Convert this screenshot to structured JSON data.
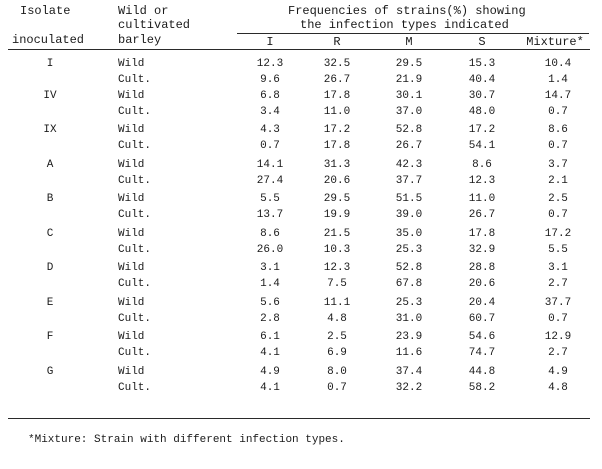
{
  "table": {
    "header": {
      "col1_line1": "Isolate",
      "col1_line2": "inoculated",
      "col2_line1": "Wild or",
      "col2_line2": "cultivated",
      "col2_line3": "barley",
      "group_line1": "Frequencies of strains(%) showing",
      "group_line2": "the infection types indicated",
      "types": [
        "I",
        "R",
        "M",
        "S",
        "Mixture*"
      ]
    },
    "groups": [
      {
        "isolate": "I",
        "rows": [
          {
            "barley": "Wild",
            "values": [
              "12.3",
              "32.5",
              "29.5",
              "15.3",
              "10.4"
            ]
          },
          {
            "barley": "Cult.",
            "values": [
              "9.6",
              "26.7",
              "21.9",
              "40.4",
              "1.4"
            ]
          }
        ]
      },
      {
        "isolate": "IV",
        "rows": [
          {
            "barley": "Wild",
            "values": [
              "6.8",
              "17.8",
              "30.1",
              "30.7",
              "14.7"
            ]
          },
          {
            "barley": "Cult.",
            "values": [
              "3.4",
              "11.0",
              "37.0",
              "48.0",
              "0.7"
            ]
          }
        ]
      },
      {
        "isolate": "IX",
        "rows": [
          {
            "barley": "Wild",
            "values": [
              "4.3",
              "17.2",
              "52.8",
              "17.2",
              "8.6"
            ]
          },
          {
            "barley": "Cult.",
            "values": [
              "0.7",
              "17.8",
              "26.7",
              "54.1",
              "0.7"
            ]
          }
        ]
      },
      {
        "isolate": "A",
        "rows": [
          {
            "barley": "Wild",
            "values": [
              "14.1",
              "31.3",
              "42.3",
              "8.6",
              "3.7"
            ]
          },
          {
            "barley": "Cult.",
            "values": [
              "27.4",
              "20.6",
              "37.7",
              "12.3",
              "2.1"
            ]
          }
        ]
      },
      {
        "isolate": "B",
        "rows": [
          {
            "barley": "Wild",
            "values": [
              "5.5",
              "29.5",
              "51.5",
              "11.0",
              "2.5"
            ]
          },
          {
            "barley": "Cult.",
            "values": [
              "13.7",
              "19.9",
              "39.0",
              "26.7",
              "0.7"
            ]
          }
        ]
      },
      {
        "isolate": "C",
        "rows": [
          {
            "barley": "Wild",
            "values": [
              "8.6",
              "21.5",
              "35.0",
              "17.8",
              "17.2"
            ]
          },
          {
            "barley": "Cult.",
            "values": [
              "26.0",
              "10.3",
              "25.3",
              "32.9",
              "5.5"
            ]
          }
        ]
      },
      {
        "isolate": "D",
        "rows": [
          {
            "barley": "Wild",
            "values": [
              "3.1",
              "12.3",
              "52.8",
              "28.8",
              "3.1"
            ]
          },
          {
            "barley": "Cult.",
            "values": [
              "1.4",
              "7.5",
              "67.8",
              "20.6",
              "2.7"
            ]
          }
        ]
      },
      {
        "isolate": "E",
        "rows": [
          {
            "barley": "Wild",
            "values": [
              "5.6",
              "11.1",
              "25.3",
              "20.4",
              "37.7"
            ]
          },
          {
            "barley": "Cult.",
            "values": [
              "2.8",
              "4.8",
              "31.0",
              "60.7",
              "0.7"
            ]
          }
        ]
      },
      {
        "isolate": "F",
        "rows": [
          {
            "barley": "Wild",
            "values": [
              "6.1",
              "2.5",
              "23.9",
              "54.6",
              "12.9"
            ]
          },
          {
            "barley": "Cult.",
            "values": [
              "4.1",
              "6.9",
              "11.6",
              "74.7",
              "2.7"
            ]
          }
        ]
      },
      {
        "isolate": "G",
        "rows": [
          {
            "barley": "Wild",
            "values": [
              "4.9",
              "8.0",
              "37.4",
              "44.8",
              "4.9"
            ]
          },
          {
            "barley": "Cult.",
            "values": [
              "4.1",
              "0.7",
              "32.2",
              "58.2",
              "4.8"
            ]
          }
        ]
      }
    ],
    "footnote": "*Mixture: Strain with different infection types."
  }
}
